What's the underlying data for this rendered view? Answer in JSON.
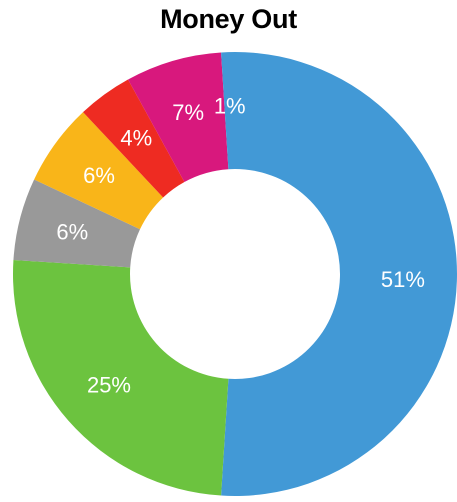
{
  "chart_data": {
    "type": "pie",
    "title": "Money Out",
    "slices": [
      {
        "label": "51%",
        "value": 51,
        "color": "#4299d6"
      },
      {
        "label": "25%",
        "value": 25,
        "color": "#6cc33f"
      },
      {
        "label": "6%",
        "value": 6,
        "color": "#999999"
      },
      {
        "label": "6%",
        "value": 6,
        "color": "#f9b519"
      },
      {
        "label": "4%",
        "value": 4,
        "color": "#ee2b22"
      },
      {
        "label": "7%",
        "value": 7,
        "color": "#d8187d"
      },
      {
        "label": "1%",
        "value": 1,
        "color": "#4299d6"
      }
    ],
    "legend": "none",
    "grid": false
  }
}
